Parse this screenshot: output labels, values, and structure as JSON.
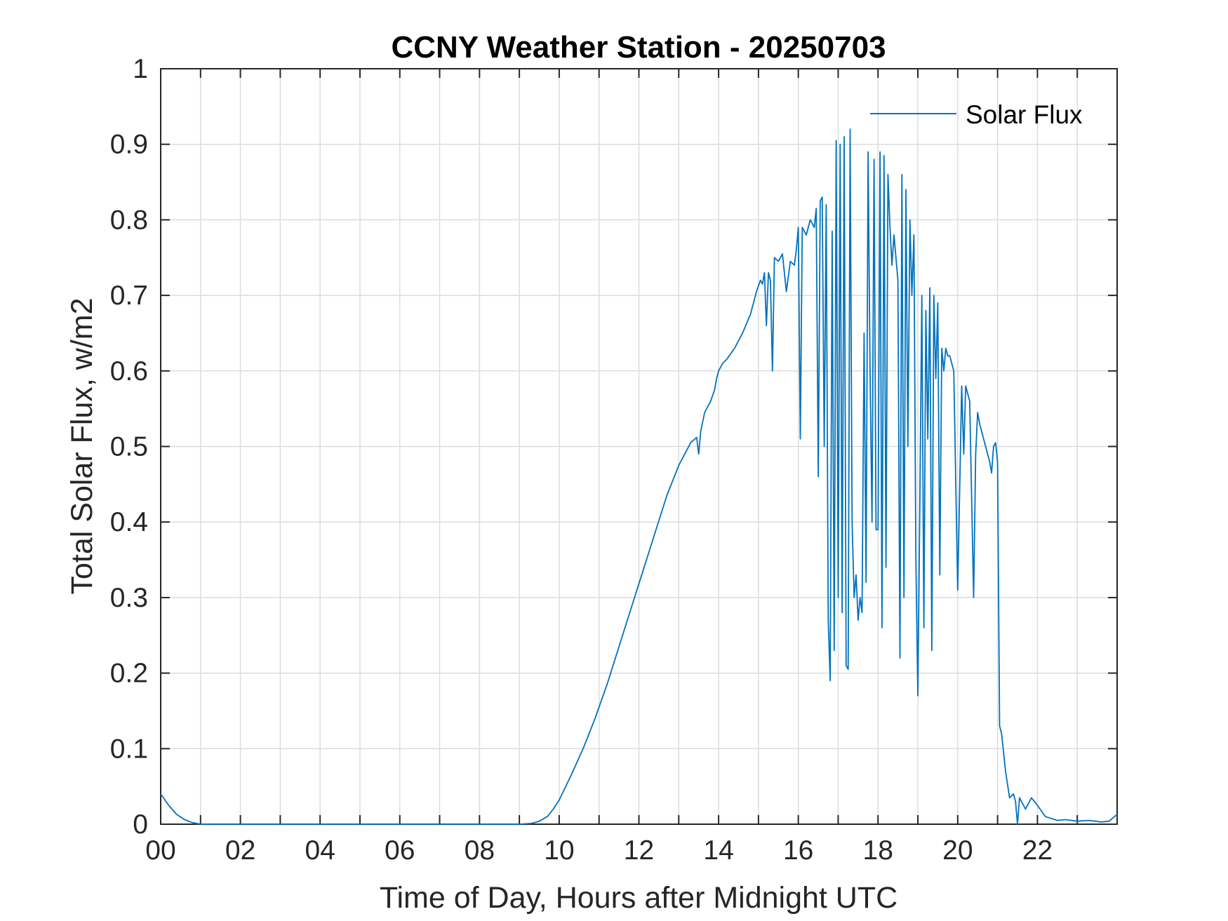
{
  "chart_data": {
    "type": "line",
    "title": "CCNY Weather Station - 20250703",
    "xlabel": "Time of Day, Hours after Midnight UTC",
    "ylabel": "Total Solar Flux, w/m2",
    "xlim": [
      0,
      24
    ],
    "ylim": [
      0,
      1
    ],
    "grid": true,
    "legend_position": "top-right",
    "x_ticks": [
      0,
      2,
      4,
      6,
      8,
      10,
      12,
      14,
      16,
      18,
      20,
      22
    ],
    "x_tick_labels": [
      "00",
      "02",
      "04",
      "06",
      "08",
      "10",
      "12",
      "14",
      "16",
      "18",
      "20",
      "22"
    ],
    "y_ticks": [
      0,
      0.1,
      0.2,
      0.3,
      0.4,
      0.5,
      0.6,
      0.7,
      0.8,
      0.9,
      1
    ],
    "y_tick_labels": [
      "0",
      "0.1",
      "0.2",
      "0.3",
      "0.4",
      "0.5",
      "0.6",
      "0.7",
      "0.8",
      "0.9",
      "1"
    ],
    "series": [
      {
        "name": "Solar Flux",
        "color": "#0072bd",
        "x": [
          0,
          0.2,
          0.4,
          0.6,
          0.8,
          1.0,
          2,
          4,
          6,
          8,
          9.0,
          9.3,
          9.5,
          9.7,
          9.85,
          10.0,
          10.3,
          10.6,
          10.9,
          11.2,
          11.5,
          11.8,
          12.1,
          12.4,
          12.7,
          13.0,
          13.3,
          13.45,
          13.5,
          13.55,
          13.65,
          13.8,
          13.9,
          13.95,
          14.0,
          14.1,
          14.2,
          14.4,
          14.6,
          14.8,
          14.95,
          15.05,
          15.1,
          15.15,
          15.2,
          15.25,
          15.3,
          15.35,
          15.4,
          15.5,
          15.6,
          15.7,
          15.8,
          15.9,
          15.95,
          16.0,
          16.05,
          16.1,
          16.2,
          16.3,
          16.4,
          16.45,
          16.5,
          16.55,
          16.6,
          16.65,
          16.7,
          16.75,
          16.8,
          16.85,
          16.9,
          16.95,
          17.0,
          17.05,
          17.1,
          17.15,
          17.2,
          17.25,
          17.3,
          17.35,
          17.4,
          17.45,
          17.5,
          17.55,
          17.6,
          17.65,
          17.7,
          17.75,
          17.8,
          17.85,
          17.9,
          17.95,
          18.0,
          18.05,
          18.1,
          18.15,
          18.2,
          18.25,
          18.3,
          18.35,
          18.4,
          18.5,
          18.55,
          18.6,
          18.65,
          18.7,
          18.75,
          18.8,
          18.85,
          18.9,
          18.95,
          19.0,
          19.05,
          19.1,
          19.15,
          19.2,
          19.25,
          19.3,
          19.35,
          19.4,
          19.45,
          19.5,
          19.55,
          19.6,
          19.65,
          19.7,
          19.75,
          19.8,
          19.85,
          19.9,
          20.0,
          20.1,
          20.15,
          20.2,
          20.25,
          20.3,
          20.4,
          20.45,
          20.5,
          20.55,
          20.6,
          20.65,
          20.7,
          20.75,
          20.8,
          20.85,
          20.9,
          20.95,
          21.0,
          21.05,
          21.1,
          21.2,
          21.3,
          21.4,
          21.45,
          21.5,
          21.55,
          21.7,
          21.85,
          22.0,
          22.2,
          22.5,
          22.7,
          23.0,
          23.3,
          23.6,
          23.8,
          24.0
        ],
        "y": [
          0.04,
          0.025,
          0.013,
          0.006,
          0.002,
          0.0,
          0.0,
          0.0,
          0.0,
          0.0,
          0.0,
          0.001,
          0.004,
          0.01,
          0.02,
          0.032,
          0.065,
          0.1,
          0.14,
          0.185,
          0.235,
          0.285,
          0.335,
          0.385,
          0.435,
          0.475,
          0.505,
          0.512,
          0.49,
          0.52,
          0.545,
          0.56,
          0.575,
          0.59,
          0.6,
          0.61,
          0.615,
          0.63,
          0.65,
          0.675,
          0.705,
          0.72,
          0.715,
          0.73,
          0.66,
          0.73,
          0.72,
          0.6,
          0.75,
          0.745,
          0.755,
          0.705,
          0.745,
          0.74,
          0.76,
          0.79,
          0.51,
          0.79,
          0.78,
          0.8,
          0.79,
          0.815,
          0.46,
          0.825,
          0.83,
          0.5,
          0.82,
          0.27,
          0.19,
          0.785,
          0.23,
          0.905,
          0.3,
          0.9,
          0.28,
          0.91,
          0.21,
          0.205,
          0.92,
          0.4,
          0.3,
          0.33,
          0.27,
          0.3,
          0.28,
          0.65,
          0.32,
          0.89,
          0.6,
          0.4,
          0.88,
          0.39,
          0.39,
          0.89,
          0.26,
          0.885,
          0.34,
          0.86,
          0.79,
          0.74,
          0.78,
          0.72,
          0.22,
          0.86,
          0.3,
          0.84,
          0.5,
          0.8,
          0.7,
          0.78,
          0.35,
          0.17,
          0.43,
          0.7,
          0.26,
          0.68,
          0.51,
          0.71,
          0.23,
          0.7,
          0.59,
          0.69,
          0.33,
          0.63,
          0.6,
          0.63,
          0.62,
          0.62,
          0.61,
          0.6,
          0.31,
          0.58,
          0.49,
          0.58,
          0.57,
          0.56,
          0.3,
          0.49,
          0.545,
          0.53,
          0.52,
          0.51,
          0.5,
          0.49,
          0.48,
          0.465,
          0.5,
          0.505,
          0.48,
          0.13,
          0.12,
          0.07,
          0.035,
          0.04,
          0.03,
          0.0,
          0.035,
          0.02,
          0.035,
          0.025,
          0.01,
          0.005,
          0.006,
          0.004,
          0.005,
          0.003,
          0.004,
          0.013
        ]
      }
    ]
  }
}
